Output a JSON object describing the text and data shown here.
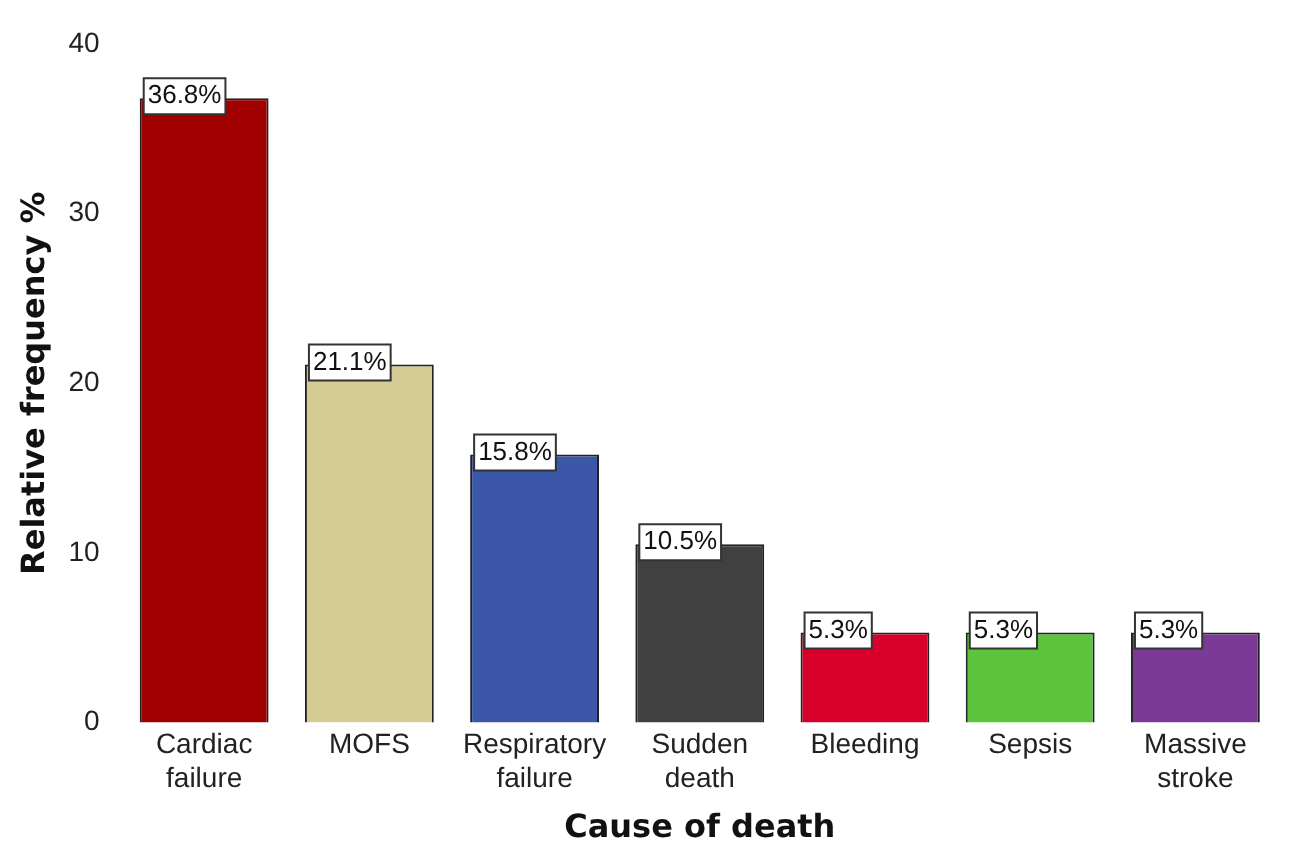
{
  "chart_data": {
    "type": "bar",
    "xlabel": "Cause of death",
    "ylabel": "Relative frequency %",
    "categories": [
      "Cardiac failure",
      "MOFS",
      "Respiratory failure",
      "Sudden death",
      "Bleeding",
      "Sepsis",
      "Massive stroke"
    ],
    "values": [
      36.8,
      21.1,
      15.8,
      10.5,
      5.3,
      5.3,
      5.3
    ],
    "colors": [
      "#a00000",
      "#d4cc94",
      "#3c56a8",
      "#404040",
      "#d8002a",
      "#5cc43c",
      "#7a3a96"
    ],
    "value_labels": [
      "36.8%",
      "21.1%",
      "15.8%",
      "10.5%",
      "5.3%",
      "5.3%",
      "5.3%"
    ],
    "ylim": [
      0,
      40
    ],
    "yticks": [
      0,
      10,
      20,
      30,
      40
    ],
    "grid": false,
    "legend": false
  }
}
